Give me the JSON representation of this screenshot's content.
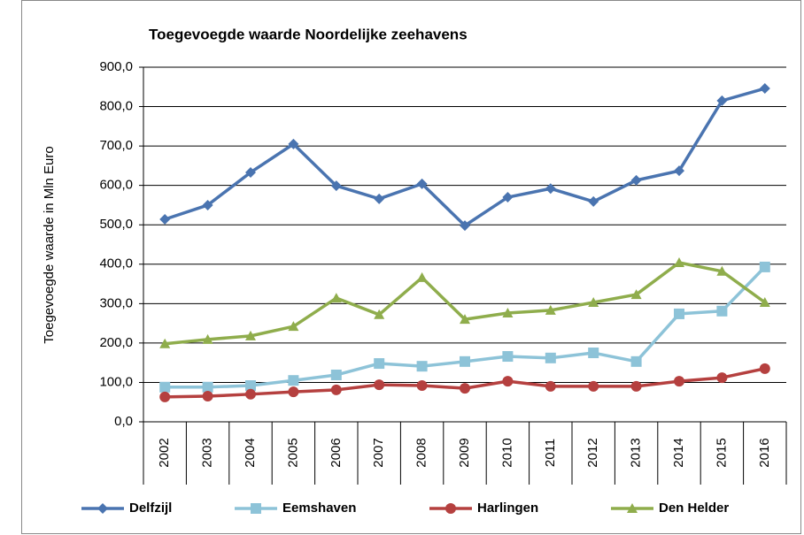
{
  "chart_data": {
    "type": "line",
    "title": "Toegevoegde waarde Noordelijke zeehavens",
    "y_label": "Toegevoegde  waarde  in Mln Euro",
    "categories": [
      "2002",
      "2003",
      "2004",
      "2005",
      "2006",
      "2007",
      "2008",
      "2009",
      "2010",
      "2011",
      "2012",
      "2013",
      "2014",
      "2015",
      "2016"
    ],
    "ylim": [
      0,
      900
    ],
    "yticks": [
      {
        "value": 0,
        "label": "0,0"
      },
      {
        "value": 100,
        "label": "100,0"
      },
      {
        "value": 200,
        "label": "200,0"
      },
      {
        "value": 300,
        "label": "300,0"
      },
      {
        "value": 400,
        "label": "400,0"
      },
      {
        "value": 500,
        "label": "500,0"
      },
      {
        "value": 600,
        "label": "600,0"
      },
      {
        "value": 700,
        "label": "700,0"
      },
      {
        "value": 800,
        "label": "800,0"
      },
      {
        "value": 900,
        "label": "900,0"
      }
    ],
    "grid": true,
    "legend": "bottom",
    "series": [
      {
        "name": "Delfzijl",
        "color": "#4a74b0",
        "marker": "diamond",
        "values": [
          514,
          550,
          633,
          705,
          599,
          566,
          604,
          498,
          570,
          592,
          559,
          613,
          637,
          815,
          846
        ]
      },
      {
        "name": "Eemshaven",
        "color": "#8dc3d8",
        "marker": "square",
        "values": [
          88,
          88,
          92,
          105,
          119,
          148,
          141,
          153,
          166,
          162,
          175,
          153,
          274,
          281,
          393
        ]
      },
      {
        "name": "Harlingen",
        "color": "#b5403f",
        "marker": "circle",
        "values": [
          63,
          65,
          70,
          76,
          81,
          94,
          92,
          85,
          103,
          90,
          90,
          90,
          103,
          112,
          135
        ]
      },
      {
        "name": "Den Helder",
        "color": "#8fad4c",
        "marker": "triangle",
        "values": [
          198,
          209,
          218,
          242,
          314,
          272,
          366,
          260,
          276,
          283,
          303,
          323,
          404,
          382,
          303
        ]
      }
    ]
  }
}
